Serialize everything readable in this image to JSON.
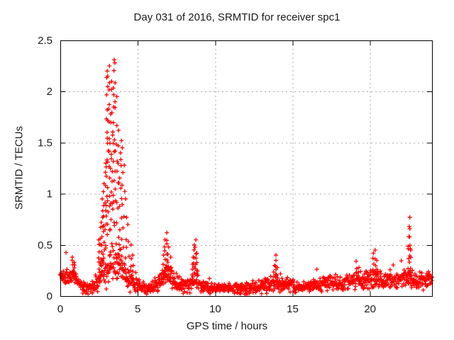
{
  "chart_data": {
    "type": "scatter",
    "title": "Day 031 of 2016, SRMTID for receiver spc1",
    "xlabel": "GPS time / hours",
    "ylabel": "SRMTID / TECUs",
    "xlim": [
      0,
      24
    ],
    "ylim": [
      0,
      2.5
    ],
    "xticks": {
      "values": [
        0,
        5,
        10,
        15,
        20
      ],
      "labels": [
        "0",
        "5",
        "10",
        "15",
        "20"
      ]
    },
    "yticks": {
      "values": [
        0,
        0.5,
        1,
        1.5,
        2,
        2.5
      ],
      "labels": [
        "0",
        "0.5",
        "1",
        "1.5",
        "2",
        "2.5"
      ]
    },
    "grid": {
      "visible": true,
      "style": "dotted",
      "color": "#a8a8a8",
      "legend": "none"
    },
    "marker": {
      "shape": "plus",
      "color": "#ff0000",
      "size": 7
    },
    "peak_envelope": [
      [
        3.44,
        2.31
      ],
      [
        3.54,
        2.28
      ],
      [
        3.16,
        2.25
      ],
      [
        3.0,
        2.2
      ],
      [
        3.34,
        2.1
      ],
      [
        3.64,
        1.95
      ],
      [
        3.93,
        1.52
      ],
      [
        4.02,
        1.45
      ],
      [
        2.92,
        1.3
      ],
      [
        0.85,
        0.38
      ],
      [
        6.88,
        0.62
      ],
      [
        8.72,
        0.55
      ],
      [
        13.9,
        0.4
      ],
      [
        19.1,
        0.34
      ],
      [
        20.32,
        0.45
      ],
      [
        22.56,
        0.77
      ],
      [
        23.9,
        0.25
      ]
    ],
    "scatter_spec": {
      "seed": 20160131,
      "dt_hours": 0.0185,
      "baseline": [
        [
          0.0,
          0.2,
          0.09
        ],
        [
          0.5,
          0.18,
          0.09
        ],
        [
          0.9,
          0.2,
          0.1
        ],
        [
          1.3,
          0.09,
          0.06
        ],
        [
          1.8,
          0.07,
          0.05
        ],
        [
          2.2,
          0.1,
          0.08
        ],
        [
          2.6,
          0.18,
          0.14
        ],
        [
          3.0,
          0.3,
          0.22
        ],
        [
          3.5,
          0.32,
          0.25
        ],
        [
          4.0,
          0.26,
          0.2
        ],
        [
          4.5,
          0.16,
          0.12
        ],
        [
          5.0,
          0.1,
          0.07
        ],
        [
          5.5,
          0.08,
          0.06
        ],
        [
          6.0,
          0.09,
          0.06
        ],
        [
          6.5,
          0.14,
          0.09
        ],
        [
          6.9,
          0.22,
          0.12
        ],
        [
          7.3,
          0.16,
          0.1
        ],
        [
          7.8,
          0.1,
          0.07
        ],
        [
          8.3,
          0.1,
          0.07
        ],
        [
          8.7,
          0.16,
          0.1
        ],
        [
          9.1,
          0.09,
          0.06
        ],
        [
          9.6,
          0.07,
          0.05
        ],
        [
          10.0,
          0.08,
          0.05
        ],
        [
          10.5,
          0.08,
          0.05
        ],
        [
          11.0,
          0.07,
          0.05
        ],
        [
          11.5,
          0.08,
          0.06
        ],
        [
          12.0,
          0.08,
          0.06
        ],
        [
          12.5,
          0.09,
          0.06
        ],
        [
          13.0,
          0.09,
          0.06
        ],
        [
          13.5,
          0.11,
          0.08
        ],
        [
          13.9,
          0.14,
          0.09
        ],
        [
          14.3,
          0.1,
          0.07
        ],
        [
          14.8,
          0.12,
          0.08
        ],
        [
          15.3,
          0.08,
          0.06
        ],
        [
          15.8,
          0.09,
          0.06
        ],
        [
          16.3,
          0.1,
          0.07
        ],
        [
          16.8,
          0.11,
          0.07
        ],
        [
          17.3,
          0.12,
          0.08
        ],
        [
          17.8,
          0.13,
          0.08
        ],
        [
          18.3,
          0.13,
          0.09
        ],
        [
          18.8,
          0.15,
          0.09
        ],
        [
          19.2,
          0.17,
          0.1
        ],
        [
          19.6,
          0.14,
          0.09
        ],
        [
          20.0,
          0.16,
          0.1
        ],
        [
          20.4,
          0.2,
          0.12
        ],
        [
          20.8,
          0.15,
          0.09
        ],
        [
          21.2,
          0.14,
          0.09
        ],
        [
          21.6,
          0.15,
          0.09
        ],
        [
          22.0,
          0.16,
          0.09
        ],
        [
          22.4,
          0.18,
          0.1
        ],
        [
          22.8,
          0.15,
          0.09
        ],
        [
          23.2,
          0.14,
          0.09
        ],
        [
          23.6,
          0.16,
          0.09
        ],
        [
          24.0,
          0.16,
          0.09
        ]
      ],
      "spikes": [
        [
          0.8,
          0.2,
          0.38,
          5
        ],
        [
          0.9,
          0.18,
          0.33,
          4
        ],
        [
          2.5,
          0.25,
          0.55,
          6
        ],
        [
          2.62,
          0.3,
          0.72,
          7
        ],
        [
          2.72,
          0.35,
          0.95,
          8
        ],
        [
          2.82,
          0.42,
          1.1,
          8
        ],
        [
          2.92,
          0.5,
          1.3,
          8
        ],
        [
          3.0,
          0.55,
          2.2,
          15
        ],
        [
          3.08,
          0.8,
          2.15,
          10
        ],
        [
          3.16,
          0.7,
          2.25,
          12
        ],
        [
          3.25,
          0.6,
          1.78,
          9
        ],
        [
          3.34,
          0.8,
          2.1,
          10
        ],
        [
          3.44,
          0.9,
          2.31,
          12
        ],
        [
          3.54,
          0.75,
          2.28,
          10
        ],
        [
          3.64,
          0.55,
          1.95,
          8
        ],
        [
          3.74,
          0.45,
          1.62,
          7
        ],
        [
          3.84,
          0.5,
          1.4,
          6
        ],
        [
          3.93,
          0.6,
          1.52,
          7
        ],
        [
          4.02,
          0.4,
          1.45,
          6
        ],
        [
          4.12,
          0.3,
          1.28,
          5
        ],
        [
          4.25,
          0.28,
          0.95,
          5
        ],
        [
          4.4,
          0.22,
          0.7,
          4
        ],
        [
          4.55,
          0.18,
          0.5,
          4
        ],
        [
          4.7,
          0.15,
          0.4,
          3
        ],
        [
          6.65,
          0.18,
          0.4,
          4
        ],
        [
          6.78,
          0.22,
          0.55,
          6
        ],
        [
          6.88,
          0.25,
          0.62,
          7
        ],
        [
          6.98,
          0.2,
          0.48,
          5
        ],
        [
          7.1,
          0.15,
          0.38,
          4
        ],
        [
          8.55,
          0.18,
          0.38,
          4
        ],
        [
          8.65,
          0.22,
          0.5,
          6
        ],
        [
          8.72,
          0.25,
          0.55,
          6
        ],
        [
          8.8,
          0.18,
          0.42,
          4
        ],
        [
          13.8,
          0.14,
          0.3,
          4
        ],
        [
          13.9,
          0.16,
          0.4,
          6
        ],
        [
          14.0,
          0.14,
          0.28,
          3
        ],
        [
          19.1,
          0.14,
          0.34,
          4
        ],
        [
          19.25,
          0.12,
          0.28,
          3
        ],
        [
          20.22,
          0.18,
          0.42,
          5
        ],
        [
          20.32,
          0.16,
          0.45,
          5
        ],
        [
          20.42,
          0.14,
          0.35,
          3
        ],
        [
          22.48,
          0.22,
          0.58,
          6
        ],
        [
          22.56,
          0.25,
          0.77,
          9
        ],
        [
          22.64,
          0.18,
          0.45,
          4
        ]
      ]
    }
  }
}
